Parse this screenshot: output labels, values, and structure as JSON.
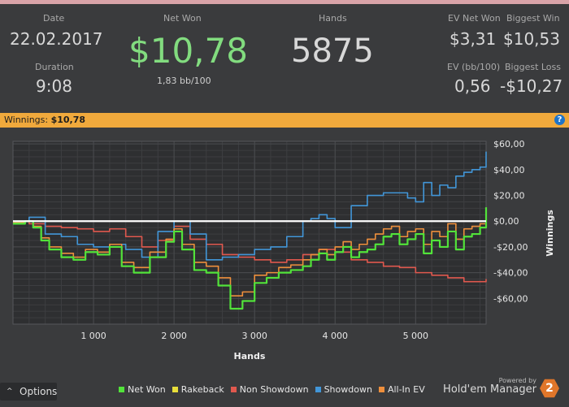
{
  "stats": {
    "date_label": "Date",
    "date_value": "22.02.2017",
    "duration_label": "Duration",
    "duration_value": "9:08",
    "net_won_label": "Net Won",
    "net_won_value": "$10,78",
    "bb_per_100": "1,83 bb/100",
    "hands_label": "Hands",
    "hands_value": "5875",
    "ev_net_won_label": "EV Net Won",
    "ev_net_won_value": "$3,31",
    "biggest_win_label": "Biggest Win",
    "biggest_win_value": "$10,53",
    "ev_bb100_label": "EV (bb/100)",
    "ev_bb100_value": "0,56",
    "biggest_loss_label": "Biggest Loss",
    "biggest_loss_value": "-$10,27"
  },
  "banner": {
    "label": "Winnings:",
    "value": "$10,78",
    "help_glyph": "?"
  },
  "chart_data": {
    "type": "line",
    "xlabel": "Hands",
    "ylabel": "Winnings",
    "x_ticks": [
      1000,
      2000,
      3000,
      4000,
      5000
    ],
    "x_tick_labels": [
      "1 000",
      "2 000",
      "3 000",
      "4 000",
      "5 000"
    ],
    "y_ticks": [
      60,
      40,
      20,
      0,
      -20,
      -40,
      -60
    ],
    "y_tick_labels": [
      "$60,00",
      "$40,00",
      "$20,00",
      "$0,00",
      "-$20,00",
      "-$40,00",
      "-$60,00"
    ],
    "xlim": [
      0,
      5875
    ],
    "ylim": [
      -80,
      62
    ],
    "grid": true,
    "zero_line": true,
    "series": [
      {
        "name": "Net Won",
        "color": "#52e33a",
        "x": [
          0,
          150,
          250,
          350,
          450,
          600,
          750,
          900,
          1050,
          1200,
          1350,
          1500,
          1700,
          1900,
          2000,
          2100,
          2250,
          2400,
          2550,
          2700,
          2850,
          3000,
          3150,
          3300,
          3450,
          3600,
          3700,
          3800,
          3900,
          4000,
          4100,
          4200,
          4300,
          4400,
          4500,
          4600,
          4700,
          4800,
          4900,
          5000,
          5100,
          5200,
          5300,
          5400,
          5500,
          5600,
          5700,
          5800,
          5875
        ],
        "y": [
          -2,
          0,
          -5,
          -15,
          -22,
          -28,
          -30,
          -24,
          -26,
          -20,
          -35,
          -40,
          -28,
          -16,
          -8,
          -22,
          -38,
          -40,
          -50,
          -68,
          -62,
          -48,
          -44,
          -40,
          -38,
          -35,
          -30,
          -25,
          -30,
          -24,
          -20,
          -28,
          -24,
          -22,
          -18,
          -12,
          -10,
          -18,
          -14,
          -10,
          -25,
          -15,
          -20,
          -8,
          -22,
          -12,
          -10,
          -5,
          10.78
        ]
      },
      {
        "name": "Rakeback",
        "color": "#e8de3a",
        "x": [
          0,
          5875
        ],
        "y": [
          0,
          0
        ]
      },
      {
        "name": "Non Showdown",
        "color": "#e0584e",
        "x": [
          0,
          200,
          400,
          600,
          800,
          1000,
          1200,
          1400,
          1600,
          1800,
          2000,
          2200,
          2400,
          2600,
          2800,
          3000,
          3200,
          3400,
          3600,
          3800,
          4000,
          4200,
          4400,
          4600,
          4800,
          5000,
          5200,
          5400,
          5600,
          5875
        ],
        "y": [
          0,
          -2,
          -4,
          -5,
          -6,
          -8,
          -6,
          -12,
          -20,
          -15,
          -4,
          -14,
          -18,
          -26,
          -28,
          -30,
          -32,
          -30,
          -26,
          -22,
          -24,
          -30,
          -32,
          -35,
          -36,
          -40,
          -42,
          -44,
          -47,
          -45
        ]
      },
      {
        "name": "Showdown",
        "color": "#4296d8",
        "x": [
          0,
          200,
          400,
          600,
          800,
          1000,
          1200,
          1400,
          1600,
          1800,
          2000,
          2200,
          2400,
          2600,
          2800,
          3000,
          3200,
          3400,
          3600,
          3700,
          3800,
          3900,
          4000,
          4200,
          4400,
          4600,
          4800,
          4900,
          5000,
          5100,
          5200,
          5300,
          5400,
          5500,
          5600,
          5700,
          5800,
          5875
        ],
        "y": [
          0,
          3,
          -10,
          -12,
          -18,
          -20,
          -18,
          -22,
          -28,
          -8,
          0,
          -10,
          -30,
          -28,
          -26,
          -22,
          -20,
          -12,
          0,
          2,
          5,
          2,
          -5,
          12,
          20,
          22,
          22,
          18,
          15,
          30,
          20,
          28,
          26,
          35,
          38,
          40,
          42,
          54
        ]
      },
      {
        "name": "All-In EV",
        "color": "#ee8f3c",
        "x": [
          0,
          150,
          250,
          350,
          450,
          600,
          750,
          900,
          1050,
          1200,
          1350,
          1500,
          1700,
          1900,
          2000,
          2100,
          2250,
          2400,
          2550,
          2700,
          2850,
          3000,
          3150,
          3300,
          3450,
          3600,
          3700,
          3800,
          3900,
          4000,
          4100,
          4200,
          4300,
          4400,
          4500,
          4600,
          4700,
          4800,
          4900,
          5000,
          5100,
          5200,
          5300,
          5400,
          5500,
          5600,
          5700,
          5800,
          5875
        ],
        "y": [
          -1,
          0,
          -4,
          -13,
          -20,
          -25,
          -28,
          -22,
          -24,
          -18,
          -32,
          -36,
          -24,
          -14,
          -6,
          -18,
          -32,
          -35,
          -44,
          -58,
          -55,
          -42,
          -40,
          -36,
          -34,
          -30,
          -26,
          -22,
          -26,
          -20,
          -16,
          -22,
          -18,
          -14,
          -10,
          -6,
          -4,
          -12,
          -8,
          -6,
          -18,
          -8,
          -12,
          -2,
          -14,
          -6,
          -4,
          -2,
          3.31
        ]
      }
    ]
  },
  "footer": {
    "options_label": "Options",
    "options_icon": "chevron-up-icon",
    "powered_by": "Powered by",
    "brand": "Hold'em Manager",
    "brand_logo_text": "2",
    "brand_color": "#e0762a"
  }
}
